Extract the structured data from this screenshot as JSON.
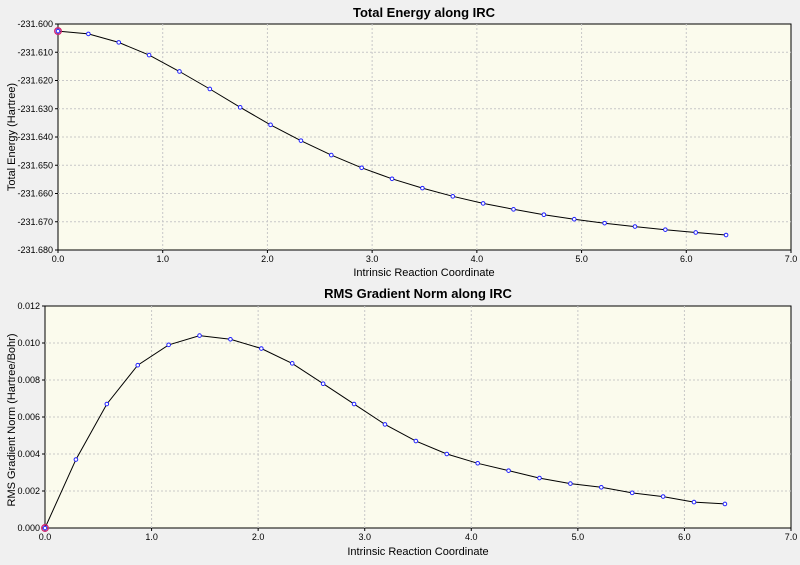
{
  "chart_data": [
    {
      "type": "line",
      "title": "Total Energy along IRC",
      "xlabel": "Intrinsic Reaction Coordinate",
      "ylabel": "Total Energy (Hartree)",
      "xlim": [
        0.0,
        7.0
      ],
      "ylim": [
        -231.68,
        -231.6
      ],
      "xticks": [
        "0.0",
        "1.0",
        "2.0",
        "3.0",
        "4.0",
        "5.0",
        "6.0",
        "7.0"
      ],
      "yticks": [
        "-231.600",
        "-231.610",
        "-231.620",
        "-231.630",
        "-231.640",
        "-231.650",
        "-231.660",
        "-231.670",
        "-231.680"
      ],
      "grid": true,
      "highlight_color": "#d02070",
      "point_color": "#2020ff",
      "x": [
        0.0,
        0.29,
        0.58,
        0.87,
        1.16,
        1.45,
        1.74,
        2.03,
        2.32,
        2.61,
        2.9,
        3.19,
        3.48,
        3.77,
        4.06,
        4.35,
        4.64,
        4.93,
        5.22,
        5.51,
        5.8,
        6.09,
        6.38
      ],
      "y": [
        -231.6025,
        -231.6035,
        -231.6065,
        -231.611,
        -231.6168,
        -231.623,
        -231.6295,
        -231.6357,
        -231.6413,
        -231.6464,
        -231.6509,
        -231.6548,
        -231.6581,
        -231.661,
        -231.6635,
        -231.6656,
        -231.6675,
        -231.6691,
        -231.6705,
        -231.6717,
        -231.6728,
        -231.6738,
        -231.6747
      ]
    },
    {
      "type": "line",
      "title": "RMS Gradient Norm along IRC",
      "xlabel": "Intrinsic Reaction Coordinate",
      "ylabel": "RMS Gradient Norm (Hartree/Bohr)",
      "xlim": [
        0.0,
        7.0
      ],
      "ylim": [
        0.0,
        0.012
      ],
      "xticks": [
        "0.0",
        "1.0",
        "2.0",
        "3.0",
        "4.0",
        "5.0",
        "6.0",
        "7.0"
      ],
      "yticks": [
        "0.000",
        "0.002",
        "0.004",
        "0.006",
        "0.008",
        "0.010",
        "0.012"
      ],
      "grid": true,
      "highlight_color": "#d02070",
      "point_color": "#2020ff",
      "x": [
        0.0,
        0.29,
        0.58,
        0.87,
        1.16,
        1.45,
        1.74,
        2.03,
        2.32,
        2.61,
        2.9,
        3.19,
        3.48,
        3.77,
        4.06,
        4.35,
        4.64,
        4.93,
        5.22,
        5.51,
        5.8,
        6.09,
        6.38
      ],
      "y": [
        0.0,
        0.0037,
        0.0067,
        0.0088,
        0.0099,
        0.0104,
        0.0102,
        0.0097,
        0.0089,
        0.0078,
        0.0067,
        0.0056,
        0.0047,
        0.004,
        0.0035,
        0.0031,
        0.0027,
        0.0024,
        0.0022,
        0.0019,
        0.0017,
        0.0014,
        0.0013
      ]
    }
  ]
}
